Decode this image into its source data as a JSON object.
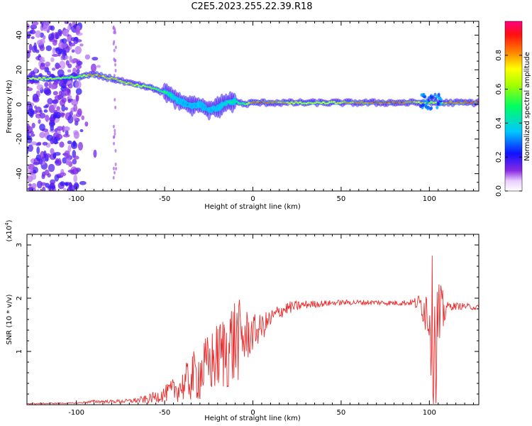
{
  "title": "C2E5.2023.255.22.39.R18",
  "chart_data": [
    {
      "type": "heatmap",
      "xlabel": "Height of straight line (km)",
      "ylabel": "Frequency (Hz)",
      "xlim": [
        -128,
        128
      ],
      "ylim": [
        -50,
        48
      ],
      "xticks": [
        -100,
        -50,
        0,
        50,
        100
      ],
      "yticks": [
        -40,
        -20,
        0,
        20,
        40
      ],
      "colorbar": {
        "label": "Normalized spectral amplitude",
        "ticks": [
          0.0,
          0.2,
          0.4,
          0.6,
          0.8
        ],
        "range": [
          0,
          1
        ]
      },
      "ridge": {
        "x": [
          -128,
          -110,
          -100,
          -90,
          -80,
          -70,
          -60,
          -50,
          -45,
          -40,
          -35,
          -30,
          -25,
          -20,
          -15,
          -10,
          -5,
          0,
          10,
          30,
          50,
          70,
          90,
          100,
          110,
          128
        ],
        "y": [
          15,
          15,
          16,
          17,
          15,
          12,
          10,
          7,
          4,
          1,
          -1,
          0,
          -3,
          -2,
          1,
          2,
          0,
          1,
          1,
          1,
          1,
          1,
          1,
          1,
          1,
          1
        ],
        "amplitude": [
          0.75,
          0.7,
          0.6,
          0.9,
          0.8,
          0.8,
          0.7,
          0.55,
          0.45,
          0.35,
          0.35,
          0.4,
          0.35,
          0.4,
          0.45,
          0.5,
          0.6,
          0.9,
          0.95,
          0.7,
          0.8,
          0.95,
          0.95,
          0.7,
          0.9,
          0.95
        ]
      }
    },
    {
      "type": "line",
      "xlabel": "Height of straight line (km)",
      "ylabel": "SNR (10 * v/v)",
      "yscale_label": "(x10",
      "yscale_exp": "4",
      "xlim": [
        -128,
        128
      ],
      "ylim": [
        0,
        3.2
      ],
      "xticks": [
        -100,
        -50,
        0,
        50,
        100
      ],
      "yticks": [
        1,
        2,
        3
      ],
      "color": "#e83030",
      "envelope": {
        "x": [
          -128,
          -100,
          -90,
          -80,
          -70,
          -60,
          -50,
          -40,
          -35,
          -30,
          -25,
          -20,
          -15,
          -10,
          -5,
          0,
          5,
          10,
          15,
          20,
          30,
          40,
          50,
          60,
          70,
          80,
          90,
          95,
          100,
          102,
          104,
          106,
          110,
          120,
          128
        ],
        "mean": [
          0.02,
          0.03,
          0.06,
          0.06,
          0.07,
          0.1,
          0.2,
          0.35,
          0.5,
          0.6,
          0.75,
          0.9,
          1.05,
          1.2,
          1.25,
          1.35,
          1.45,
          1.6,
          1.75,
          1.82,
          1.88,
          1.9,
          1.92,
          1.92,
          1.92,
          1.91,
          1.92,
          1.9,
          1.75,
          1.4,
          1.3,
          1.6,
          1.85,
          1.85,
          1.82
        ],
        "spread": [
          0.01,
          0.01,
          0.03,
          0.03,
          0.04,
          0.08,
          0.15,
          0.3,
          0.45,
          0.55,
          0.6,
          0.65,
          0.8,
          0.9,
          0.6,
          0.35,
          0.25,
          0.2,
          0.15,
          0.12,
          0.08,
          0.06,
          0.05,
          0.05,
          0.05,
          0.05,
          0.06,
          0.2,
          0.7,
          1.5,
          1.4,
          0.7,
          0.08,
          0.06,
          0.05
        ]
      }
    }
  ]
}
